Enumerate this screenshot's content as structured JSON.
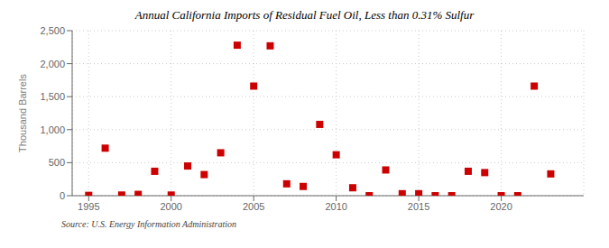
{
  "chart_data": {
    "type": "scatter",
    "title": "Annual California Imports of Residual Fuel Oil, Less than 0.31% Sulfur",
    "y_label": "Thousand Barrels",
    "annotations": [
      "Source: U.S. Energy Information Administration"
    ],
    "x": [
      1995,
      1996,
      1997,
      1998,
      1999,
      2000,
      2001,
      2002,
      2003,
      2004,
      2005,
      2006,
      2007,
      2008,
      2009,
      2010,
      2011,
      2012,
      2013,
      2014,
      2015,
      2016,
      2017,
      2018,
      2019,
      2020,
      2021,
      2022,
      2023
    ],
    "values": [
      5,
      720,
      10,
      20,
      370,
      10,
      450,
      320,
      650,
      2280,
      1660,
      2270,
      180,
      140,
      1080,
      620,
      120,
      0,
      390,
      30,
      30,
      0,
      0,
      370,
      350,
      0,
      0,
      1660,
      330
    ],
    "color": "#cc0000",
    "marker": "square",
    "xlim": [
      1994,
      2025
    ],
    "xticks": [
      1995,
      2000,
      2005,
      2010,
      2015,
      2020
    ],
    "ylim": [
      0,
      2500
    ],
    "yticks": [
      0,
      500,
      {
        "value": 1000,
        "label": "1,000"
      },
      {
        "value": 1500,
        "label": "1,500"
      },
      {
        "value": 2000,
        "label": "2,000"
      },
      {
        "value": 2500,
        "label": "2,500"
      }
    ],
    "grid": true
  }
}
